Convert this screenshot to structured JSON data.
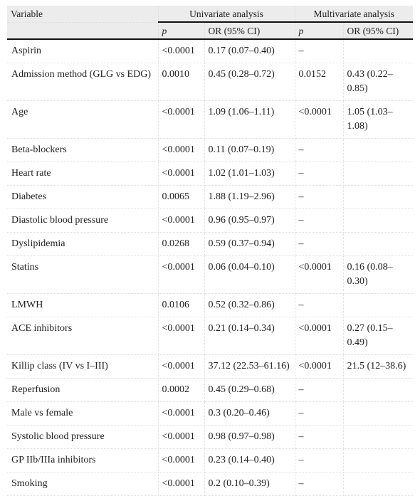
{
  "table": {
    "header": {
      "variable": "Variable",
      "univariate": "Univariate analysis",
      "multivariate": "Multivariate analysis",
      "subheaders": [
        "p",
        "OR (95% CI)",
        "p",
        "OR (95% CI)"
      ]
    },
    "rows": [
      [
        "Aspirin",
        "<0.0001",
        "0.17 (0.07–0.40)",
        "–",
        null
      ],
      [
        "Admission method (GLG vs EDG)",
        "0.0010",
        "0.45 (0.28–0.72)",
        "0.0152",
        "0.43 (0.22–0.85)"
      ],
      [
        "Age",
        "<0.0001",
        "1.09 (1.06–1.11)",
        "<0.0001",
        "1.05 (1.03–1.08)"
      ],
      [
        "Beta-blockers",
        "<0.0001",
        "0.11 (0.07–0.19)",
        "–",
        null
      ],
      [
        "Heart rate",
        "<0.0001",
        "1.02 (1.01–1.03)",
        "–",
        null
      ],
      [
        "Diabetes",
        "0.0065",
        "1.88 (1.19–2.96)",
        "–",
        null
      ],
      [
        "Diastolic blood pressure",
        "<0.0001",
        "0.96 (0.95–0.97)",
        "–",
        null
      ],
      [
        "Dyslipidemia",
        "0.0268",
        "0.59 (0.37–0.94)",
        "–",
        null
      ],
      [
        "Statins",
        "<0.0001",
        "0.06 (0.04–0.10)",
        "<0.0001",
        "0.16 (0.08–0.30)"
      ],
      [
        "LMWH",
        "0.0106",
        "0.52 (0.32–0.86)",
        "–",
        null
      ],
      [
        "ACE inhibitors",
        "<0.0001",
        "0.21 (0.14–0.34)",
        "<0.0001",
        "0.27 (0.15–0.49)"
      ],
      [
        "Killip class (IV vs I–III)",
        "<0.0001",
        "37.12 (22.53–61.16)",
        "<0.0001",
        "21.5 (12–38.6)"
      ],
      [
        "Reperfusion",
        "0.0002",
        "0.45 (0.29–0.68)",
        "–",
        null
      ],
      [
        "Male vs female",
        "<0.0001",
        "0.3 (0.20–0.46)",
        "–",
        null
      ],
      [
        "Systolic blood pressure",
        "<0.0001",
        "0.98 (0.97–0.98)",
        "–",
        null
      ],
      [
        "GP IIb/IIIa inhibitors",
        "<0.0001",
        "0.23 (0.14–0.40)",
        "–",
        null
      ],
      [
        "Smoking",
        "<0.0001",
        "0.2 (0.10–0.39)",
        "–",
        null
      ]
    ]
  }
}
